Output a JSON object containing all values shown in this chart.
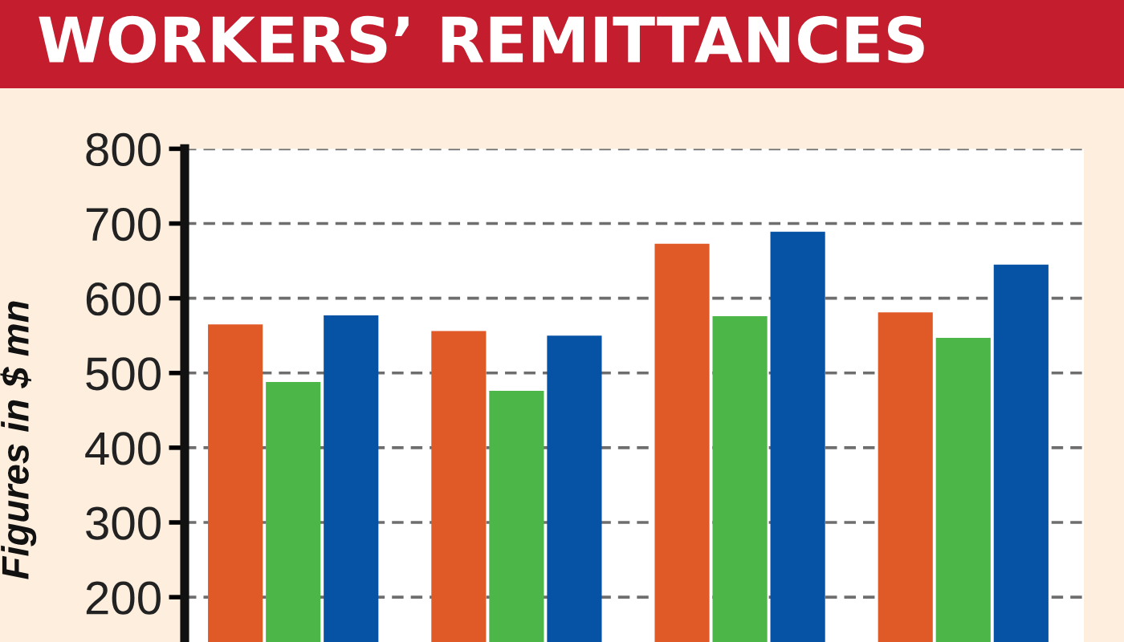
{
  "chart_data": {
    "type": "bar",
    "title": "WORKERS’ REMITTANCES",
    "ylabel": "Figures in $ mn",
    "categories": [
      null,
      null,
      null,
      null
    ],
    "series": [
      {
        "color": "#e05a27",
        "values": [
          565,
          556,
          673,
          581
        ]
      },
      {
        "color": "#4cb748",
        "values": [
          488,
          476,
          576,
          547
        ]
      },
      {
        "color": "#0652a5",
        "values": [
          577,
          550,
          689,
          645
        ]
      }
    ],
    "ylim": [
      140,
      800
    ],
    "yticks": [
      200,
      300,
      400,
      500,
      600,
      700,
      800
    ],
    "grid": "y",
    "tick_labels": "y"
  }
}
